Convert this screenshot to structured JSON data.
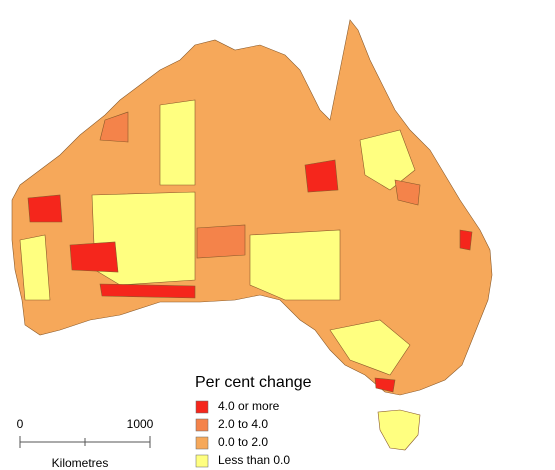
{
  "legend": {
    "title": "Per cent change",
    "items": [
      {
        "label": "4.0 or more",
        "color": "#f5261c"
      },
      {
        "label": "2.0 to 4.0",
        "color": "#f4834a"
      },
      {
        "label": "0.0 to 2.0",
        "color": "#f6a85a"
      },
      {
        "label": "Less than 0.0",
        "color": "#ffff80"
      }
    ]
  },
  "scale_bar": {
    "ticks": [
      0,
      1000
    ],
    "unit": "Kilometres"
  }
}
